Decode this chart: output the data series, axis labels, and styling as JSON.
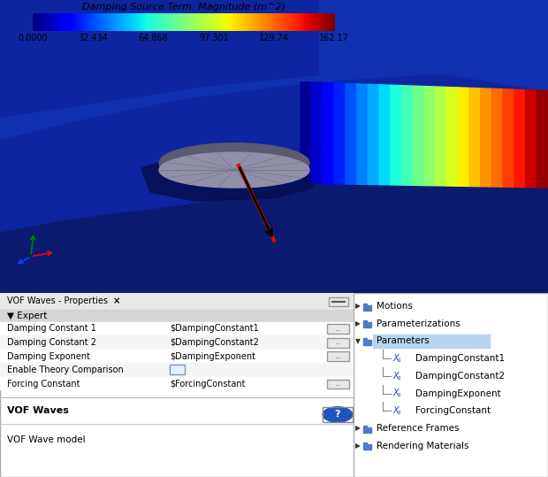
{
  "colorbar_title": "Damping Source Term: Magnitude (m^2)",
  "colorbar_ticks": [
    "0.0000",
    "32.434",
    "64.868",
    "97.301",
    "129.74",
    "162.17"
  ],
  "left_panel_title": "VOF Waves - Properties  ×",
  "left_panel_section": "▼ Expert",
  "left_panel_rows": [
    [
      "Damping Constant 1",
      "$DampingConstant1",
      true
    ],
    [
      "Damping Constant 2",
      "$DampingConstant2",
      true
    ],
    [
      "Damping Exponent",
      "$DampingExponent",
      true
    ],
    [
      "Enable Theory Comparison",
      "",
      false
    ],
    [
      "Forcing Constant",
      "$ForcingConstant",
      true
    ]
  ],
  "left_panel_footer_bold": "VOF Waves",
  "left_panel_footer": "VOF Wave model",
  "right_panel_items": [
    {
      "level": 0,
      "type": "folder_collapsed",
      "label": "Motions"
    },
    {
      "level": 0,
      "type": "folder_collapsed",
      "label": "Parameterizations"
    },
    {
      "level": 0,
      "type": "folder_expanded",
      "label": "Parameters",
      "highlighted": true
    },
    {
      "level": 1,
      "type": "param",
      "label": "DampingConstant1"
    },
    {
      "level": 1,
      "type": "param",
      "label": "DampingConstant2"
    },
    {
      "level": 1,
      "type": "param",
      "label": "DampingExponent"
    },
    {
      "level": 1,
      "type": "param",
      "label": "ForcingConstant"
    },
    {
      "level": 0,
      "type": "folder_collapsed",
      "label": "Reference Frames"
    },
    {
      "level": 0,
      "type": "folder_collapsed",
      "label": "Rendering Materials"
    }
  ]
}
